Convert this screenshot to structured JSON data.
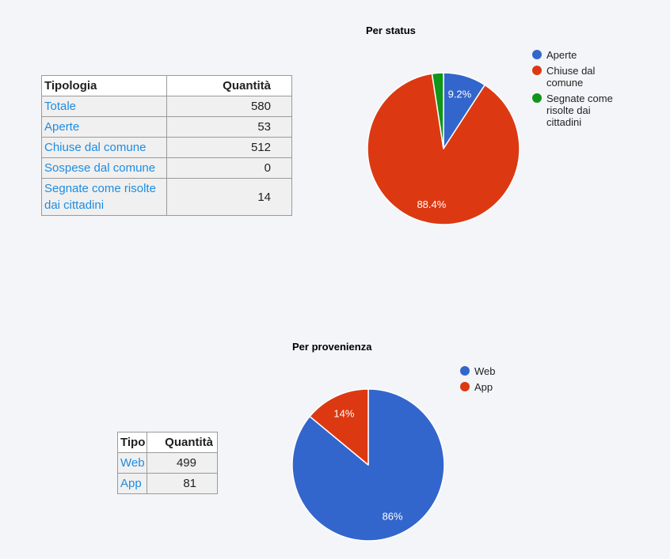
{
  "theme": {
    "page_background": "#f4f5f8",
    "link_color": "#1e8ce1",
    "table_cell_background": "#f0f0f0",
    "table_border_color": "#9a9a9a"
  },
  "status_section": {
    "table": {
      "col_headers": [
        "Tipologia",
        "Quantità"
      ],
      "rows": [
        {
          "label": "Totale",
          "value": "580"
        },
        {
          "label": "Aperte",
          "value": "53"
        },
        {
          "label": "Chiuse dal comune",
          "value": "512"
        },
        {
          "label": "Sospese dal comune",
          "value": "0"
        },
        {
          "label": "Segnate come risolte dai cittadini",
          "value": "14"
        }
      ]
    }
  },
  "provenance_section": {
    "table": {
      "col_headers": [
        "Tipo",
        "Quantità"
      ],
      "rows": [
        {
          "label": "Web",
          "value": "499"
        },
        {
          "label": "App",
          "value": "81"
        }
      ]
    }
  },
  "chart_data": [
    {
      "type": "pie",
      "title": "Per status",
      "labels": [
        "Aperte",
        "Chiuse dal comune",
        "Segnate come risolte dai cittadini"
      ],
      "values": [
        53,
        512,
        14
      ],
      "percent_labels": [
        "9.2%",
        "88.4%",
        ""
      ],
      "colors": [
        "#3366cc",
        "#dc3912",
        "#109618"
      ],
      "label_color": "#ffffff",
      "legend_position": "right",
      "start_angle_deg": 0,
      "direction": "clockwise"
    },
    {
      "type": "pie",
      "title": "Per provenienza",
      "labels": [
        "Web",
        "App"
      ],
      "values": [
        499,
        81
      ],
      "percent_labels": [
        "86%",
        "14%"
      ],
      "colors": [
        "#3366cc",
        "#dc3912"
      ],
      "label_color": "#ffffff",
      "legend_position": "right",
      "start_angle_deg": 0,
      "direction": "clockwise"
    }
  ]
}
